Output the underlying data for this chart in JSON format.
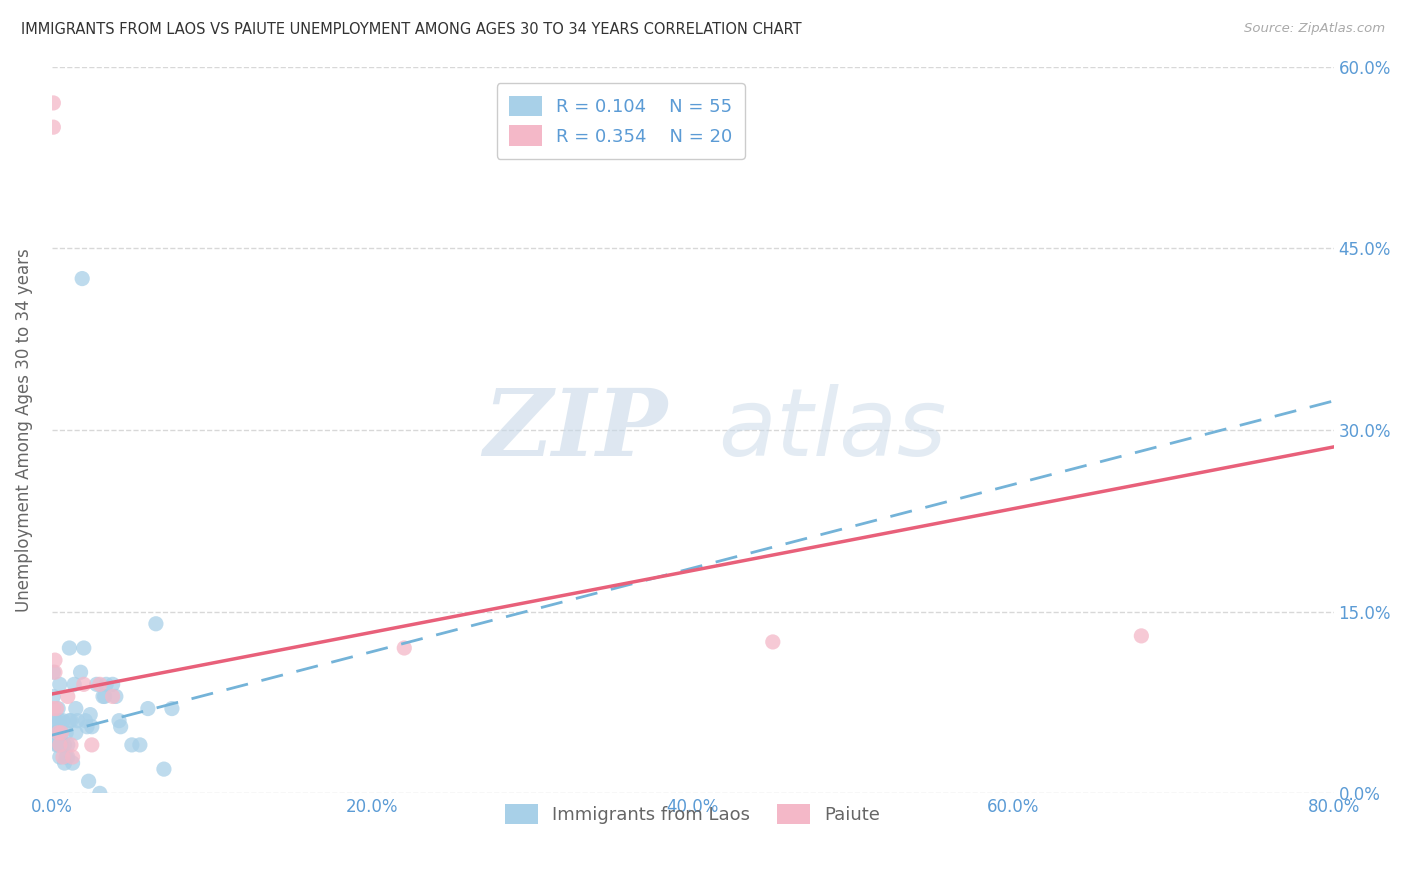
{
  "title": "IMMIGRANTS FROM LAOS VS PAIUTE UNEMPLOYMENT AMONG AGES 30 TO 34 YEARS CORRELATION CHART",
  "source": "Source: ZipAtlas.com",
  "xlabel_ticks": [
    "0.0%",
    "",
    "20.0%",
    "",
    "40.0%",
    "",
    "60.0%",
    "",
    "80.0%"
  ],
  "ylabel_ticks_right": [
    "0.0%",
    "15.0%",
    "30.0%",
    "45.0%",
    "60.0%"
  ],
  "xlim": [
    0.0,
    0.8
  ],
  "ylim": [
    0.0,
    0.6
  ],
  "legend_r1": "R = 0.104",
  "legend_n1": "N = 55",
  "legend_r2": "R = 0.354",
  "legend_n2": "N = 20",
  "series1_color": "#a8d0e8",
  "series2_color": "#f4b8c8",
  "trendline1_color": "#74b3d8",
  "trendline2_color": "#e8607a",
  "ylabel": "Unemployment Among Ages 30 to 34 years",
  "legend1_label": "Immigrants from Laos",
  "legend2_label": "Paiute",
  "series1_x": [
    0.001,
    0.001,
    0.002,
    0.002,
    0.003,
    0.003,
    0.003,
    0.004,
    0.004,
    0.004,
    0.005,
    0.005,
    0.005,
    0.005,
    0.006,
    0.006,
    0.007,
    0.007,
    0.008,
    0.008,
    0.009,
    0.009,
    0.01,
    0.01,
    0.011,
    0.011,
    0.012,
    0.013,
    0.014,
    0.015,
    0.015,
    0.016,
    0.018,
    0.019,
    0.02,
    0.021,
    0.022,
    0.023,
    0.024,
    0.025,
    0.028,
    0.03,
    0.032,
    0.033,
    0.034,
    0.038,
    0.04,
    0.042,
    0.043,
    0.05,
    0.055,
    0.06,
    0.065,
    0.07,
    0.075
  ],
  "series1_y": [
    0.08,
    0.1,
    0.05,
    0.06,
    0.04,
    0.05,
    0.06,
    0.04,
    0.05,
    0.07,
    0.03,
    0.04,
    0.06,
    0.09,
    0.04,
    0.05,
    0.04,
    0.06,
    0.025,
    0.04,
    0.03,
    0.05,
    0.03,
    0.04,
    0.06,
    0.12,
    0.06,
    0.025,
    0.09,
    0.05,
    0.07,
    0.06,
    0.1,
    0.425,
    0.12,
    0.06,
    0.055,
    0.01,
    0.065,
    0.055,
    0.09,
    0.0,
    0.08,
    0.08,
    0.09,
    0.09,
    0.08,
    0.06,
    0.055,
    0.04,
    0.04,
    0.07,
    0.14,
    0.02,
    0.07
  ],
  "series2_x": [
    0.001,
    0.001,
    0.001,
    0.002,
    0.002,
    0.003,
    0.004,
    0.005,
    0.006,
    0.007,
    0.01,
    0.012,
    0.013,
    0.02,
    0.025,
    0.03,
    0.038,
    0.22,
    0.45,
    0.68
  ],
  "series2_y": [
    0.55,
    0.57,
    0.07,
    0.1,
    0.11,
    0.07,
    0.05,
    0.04,
    0.05,
    0.03,
    0.08,
    0.04,
    0.03,
    0.09,
    0.04,
    0.09,
    0.08,
    0.12,
    0.125,
    0.13
  ],
  "watermark_zip": "ZIP",
  "watermark_atlas": "atlas",
  "background_color": "#ffffff",
  "grid_color": "#d8d8d8",
  "trendline1_slope": 0.345,
  "trendline1_intercept": 0.048,
  "trendline2_slope": 0.255,
  "trendline2_intercept": 0.082
}
